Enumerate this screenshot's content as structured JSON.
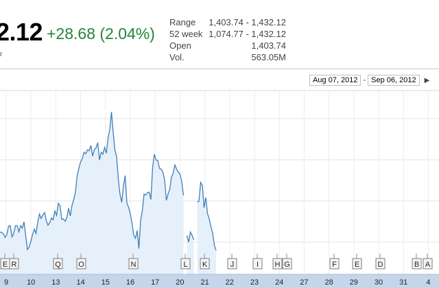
{
  "header": {
    "price": "2.12",
    "change": "+28.68 (2.04%)",
    "small_mark": "r"
  },
  "stats": [
    {
      "label": "Range",
      "value": "1,403.74 - 1,432.12"
    },
    {
      "label": "52 week",
      "value": "1,074.77 - 1,432.12"
    },
    {
      "label": "Open",
      "value": "1,403.74"
    },
    {
      "label": "Vol.",
      "value": "563.05M"
    }
  ],
  "range_selector": {
    "from": "Aug 07, 2012",
    "to": "Sep 06, 2012",
    "arrow_icon": "scroll-right-arrow-icon"
  },
  "colors": {
    "line": "#3d7fb8",
    "fill": "#e6f0fa",
    "change": "#22863a",
    "axis_bar": "#c6d6ea"
  },
  "chart_data": {
    "type": "area",
    "x_labels": [
      "9",
      "10",
      "13",
      "14",
      "15",
      "16",
      "17",
      "20",
      "21",
      "22",
      "23",
      "24",
      "27",
      "28",
      "29",
      "30",
      "31",
      "4"
    ],
    "flags": [
      "E",
      "R",
      "Q",
      "O",
      "N",
      "L",
      "K",
      "J",
      "I",
      "H",
      "G",
      "F",
      "E",
      "D",
      "B",
      "A"
    ],
    "grid": true,
    "series": [
      {
        "values": [
          1400.9,
          1400.8,
          1400.5,
          1399.8,
          1400.4,
          1402.1,
          1402.2,
          1399.9,
          1400.6,
          1402.2,
          1402.2,
          1400.9,
          1402.2,
          1401.7,
          1403.0,
          1400.1,
          1397.3,
          1397.8,
          1399.0,
          1400.4,
          1401.5,
          1400.6,
          1402.9,
          1404.6,
          1403.7,
          1404.4,
          1404.9,
          1403.2,
          1402.3,
          1402.8,
          1403.8,
          1403.4,
          1405.2,
          1404.3,
          1406.8,
          1406.3,
          1403.5,
          1403.6,
          1403.1,
          1403.9,
          1405.8,
          1404.2,
          1406.4,
          1407.6,
          1409.1,
          1412.5,
          1414.0,
          1415.3,
          1416.0,
          1417.3,
          1417.0,
          1417.8,
          1417.6,
          1418.7,
          1416.5,
          1417.8,
          1418.2,
          1419.3,
          1415.7,
          1417.3,
          1416.9,
          1418.3,
          1417.1,
          1420.2,
          1421.9,
          1425.6,
          1421.4,
          1417.8,
          1416.4,
          1411.8,
          1408.6,
          1407.0,
          1410.5,
          1412.5,
          1406.8,
          1406.0,
          1404.6,
          1402.7,
          1400.2,
          1399.6,
          1401.2,
          1397.5,
          1403.3,
          1405.3,
          1408.7,
          1408.5,
          1409.0,
          1409.1,
          1407.6,
          1414.2,
          1416.9,
          1415.7,
          1415.6,
          1414.0,
          1413.8,
          1413.2,
          1411.6,
          1407.4,
          1408.7,
          1409.7,
          1412.2,
          1413.0,
          1414.7,
          1413.8,
          1413.2,
          1412.8,
          1411.2,
          1408.4,
          null,
          1400.2,
          1398.8,
          1400.9,
          1400.2,
          1399.3,
          null,
          1407.1,
          1407.2,
          1411.1,
          1410.5,
          1405.9,
          1408.0,
          1404.7,
          1403.6,
          1402.0,
          1400.7,
          1398.2,
          1397.1
        ]
      }
    ],
    "ylim": [
      1392.2,
      1430.0
    ]
  }
}
